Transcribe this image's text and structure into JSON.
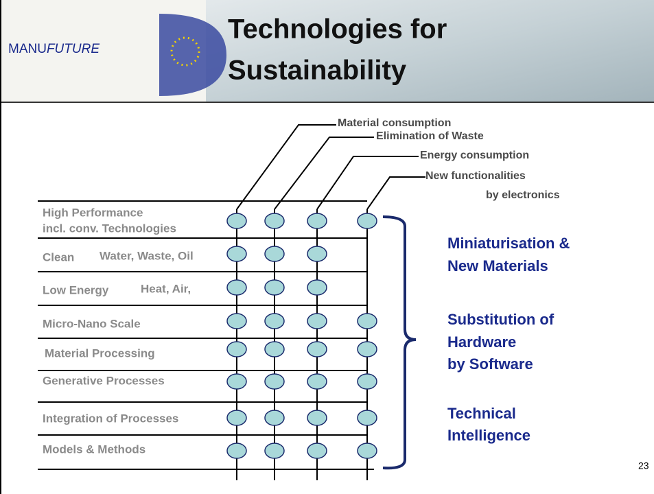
{
  "header": {
    "logo": [
      "MANU",
      "FUTURE"
    ],
    "title": [
      "Technologies for",
      "Sustainability"
    ]
  },
  "columns": [
    [
      "Material consumption"
    ],
    [
      "Elimination of Waste"
    ],
    [
      "Energy consumption"
    ],
    [
      "New functionalities",
      "by electronics"
    ]
  ],
  "rows": [
    {
      "label": "High Performance",
      "note": "incl. conv. Technologies"
    },
    {
      "label": "Clean",
      "note": "Water, Waste, Oil"
    },
    {
      "label": "Low Energy",
      "note": "Heat, Air,"
    },
    {
      "label": "Micro-Nano Scale"
    },
    {
      "label": "Material Processing"
    },
    {
      "label": "Generative Processes"
    },
    {
      "label": "Integration of Processes"
    },
    {
      "label": "Models & Methods"
    }
  ],
  "topics": [
    [
      "Miniaturisation &",
      "New Materials"
    ],
    [
      "Substitution of",
      "Hardware",
      "by Software"
    ],
    [
      "Technical",
      "Intelligence"
    ]
  ],
  "page_number": "23"
}
